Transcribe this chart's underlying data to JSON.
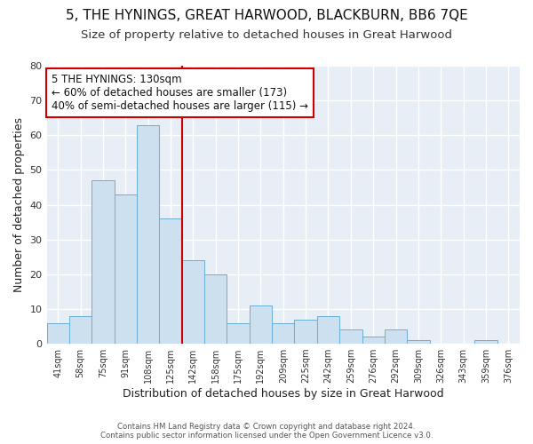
{
  "title": "5, THE HYNINGS, GREAT HARWOOD, BLACKBURN, BB6 7QE",
  "subtitle": "Size of property relative to detached houses in Great Harwood",
  "xlabel": "Distribution of detached houses by size in Great Harwood",
  "ylabel": "Number of detached properties",
  "footer_line1": "Contains HM Land Registry data © Crown copyright and database right 2024.",
  "footer_line2": "Contains public sector information licensed under the Open Government Licence v3.0.",
  "bar_labels": [
    "41sqm",
    "58sqm",
    "75sqm",
    "91sqm",
    "108sqm",
    "125sqm",
    "142sqm",
    "158sqm",
    "175sqm",
    "192sqm",
    "209sqm",
    "225sqm",
    "242sqm",
    "259sqm",
    "276sqm",
    "292sqm",
    "309sqm",
    "326sqm",
    "343sqm",
    "359sqm",
    "376sqm"
  ],
  "bar_values": [
    6,
    8,
    47,
    43,
    63,
    36,
    24,
    20,
    6,
    11,
    6,
    7,
    8,
    4,
    2,
    4,
    1,
    0,
    0,
    1,
    0
  ],
  "bar_color": "#cce0f0",
  "bar_edge_color": "#6aaed6",
  "reference_line_color": "#cc0000",
  "annotation_text": "5 THE HYNINGS: 130sqm\n← 60% of detached houses are smaller (173)\n40% of semi-detached houses are larger (115) →",
  "annotation_box_color": "#ffffff",
  "annotation_box_edge_color": "#cc0000",
  "ylim": [
    0,
    80
  ],
  "plot_bg_color": "#e8eef5",
  "fig_bg_color": "#ffffff",
  "grid_color": "#ffffff",
  "title_fontsize": 11,
  "subtitle_fontsize": 9.5
}
